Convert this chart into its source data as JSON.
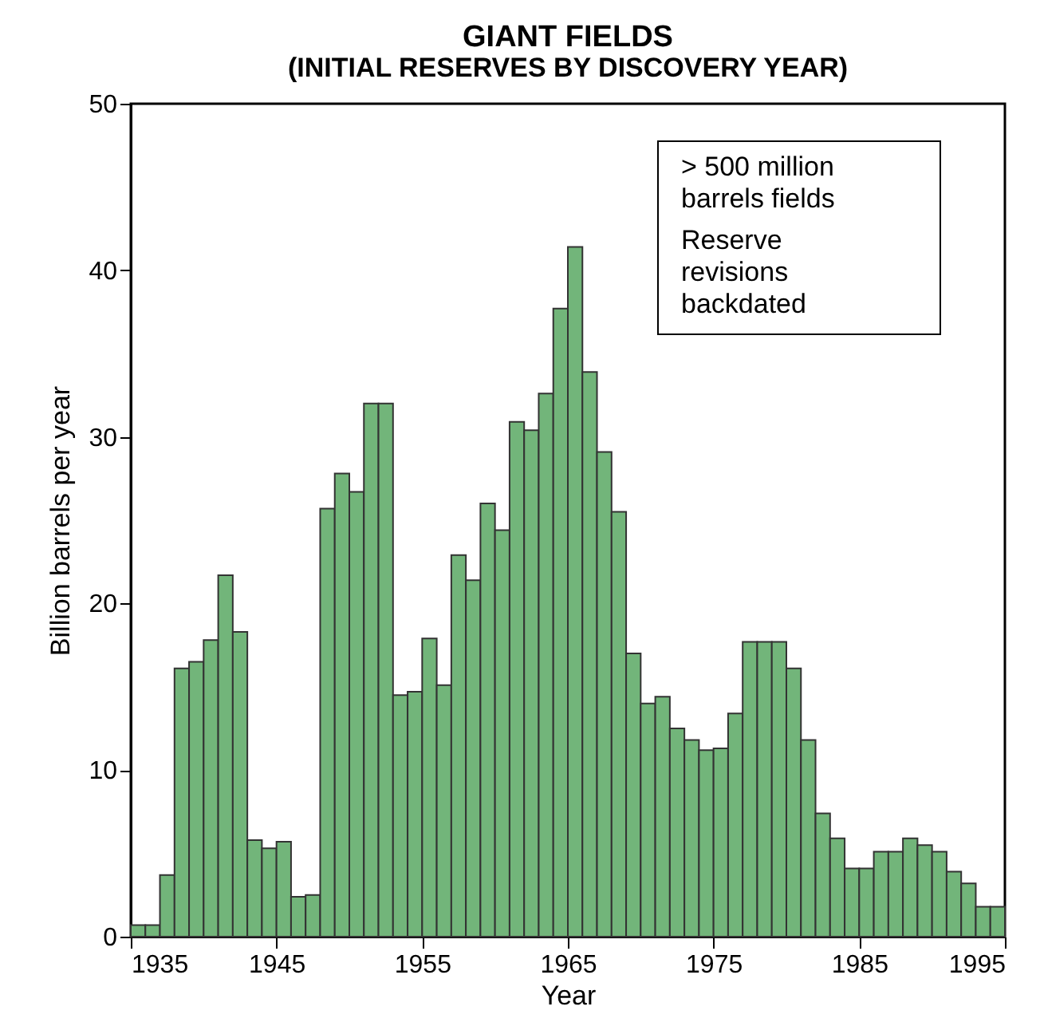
{
  "chart_data": {
    "type": "histogram",
    "title": "GIANT FIELDS",
    "subtitle": "(INITIAL RESERVES BY DISCOVERY YEAR)",
    "xlabel": "Year",
    "ylabel": "Billion barrels per year",
    "bins": [
      1935,
      1936,
      1937,
      1938,
      1939,
      1940,
      1941,
      1942,
      1943,
      1944,
      1945,
      1946,
      1947,
      1948,
      1949,
      1950,
      1951,
      1952,
      1953,
      1954,
      1955,
      1956,
      1957,
      1958,
      1959,
      1960,
      1961,
      1962,
      1963,
      1964,
      1965,
      1966,
      1967,
      1968,
      1969,
      1970,
      1971,
      1972,
      1973,
      1974,
      1975,
      1976,
      1977,
      1978,
      1979,
      1980,
      1981,
      1982,
      1983,
      1984,
      1985,
      1986,
      1987,
      1988,
      1989,
      1990,
      1991,
      1992,
      1993,
      1994,
      1995
    ],
    "values": [
      0.7,
      0.7,
      3.7,
      16.1,
      16.5,
      17.8,
      21.7,
      18.3,
      5.8,
      5.3,
      5.7,
      2.4,
      2.5,
      25.7,
      27.8,
      26.7,
      32.0,
      32.0,
      14.5,
      14.7,
      17.9,
      15.1,
      22.9,
      21.4,
      26.0,
      24.4,
      30.9,
      30.4,
      32.6,
      37.7,
      41.4,
      33.9,
      29.1,
      25.5,
      17.0,
      14.0,
      14.4,
      12.5,
      11.8,
      11.2,
      11.3,
      13.4,
      17.7,
      17.7,
      17.7,
      16.1,
      11.8,
      7.4,
      5.9,
      4.1,
      4.1,
      5.1,
      5.1,
      5.9,
      5.5,
      5.1,
      3.9,
      3.2,
      1.8,
      1.8
    ],
    "color": "#72b57a",
    "xlim": [
      1935,
      1995
    ],
    "xticks": [
      1935,
      1945,
      1955,
      1965,
      1975,
      1985,
      1995
    ],
    "ylim": [
      0,
      50
    ],
    "yticks": [
      0,
      10,
      20,
      30,
      40,
      50
    ],
    "annotations": [
      "> 500 million barrels fields",
      "Reserve revisions backdated"
    ]
  }
}
